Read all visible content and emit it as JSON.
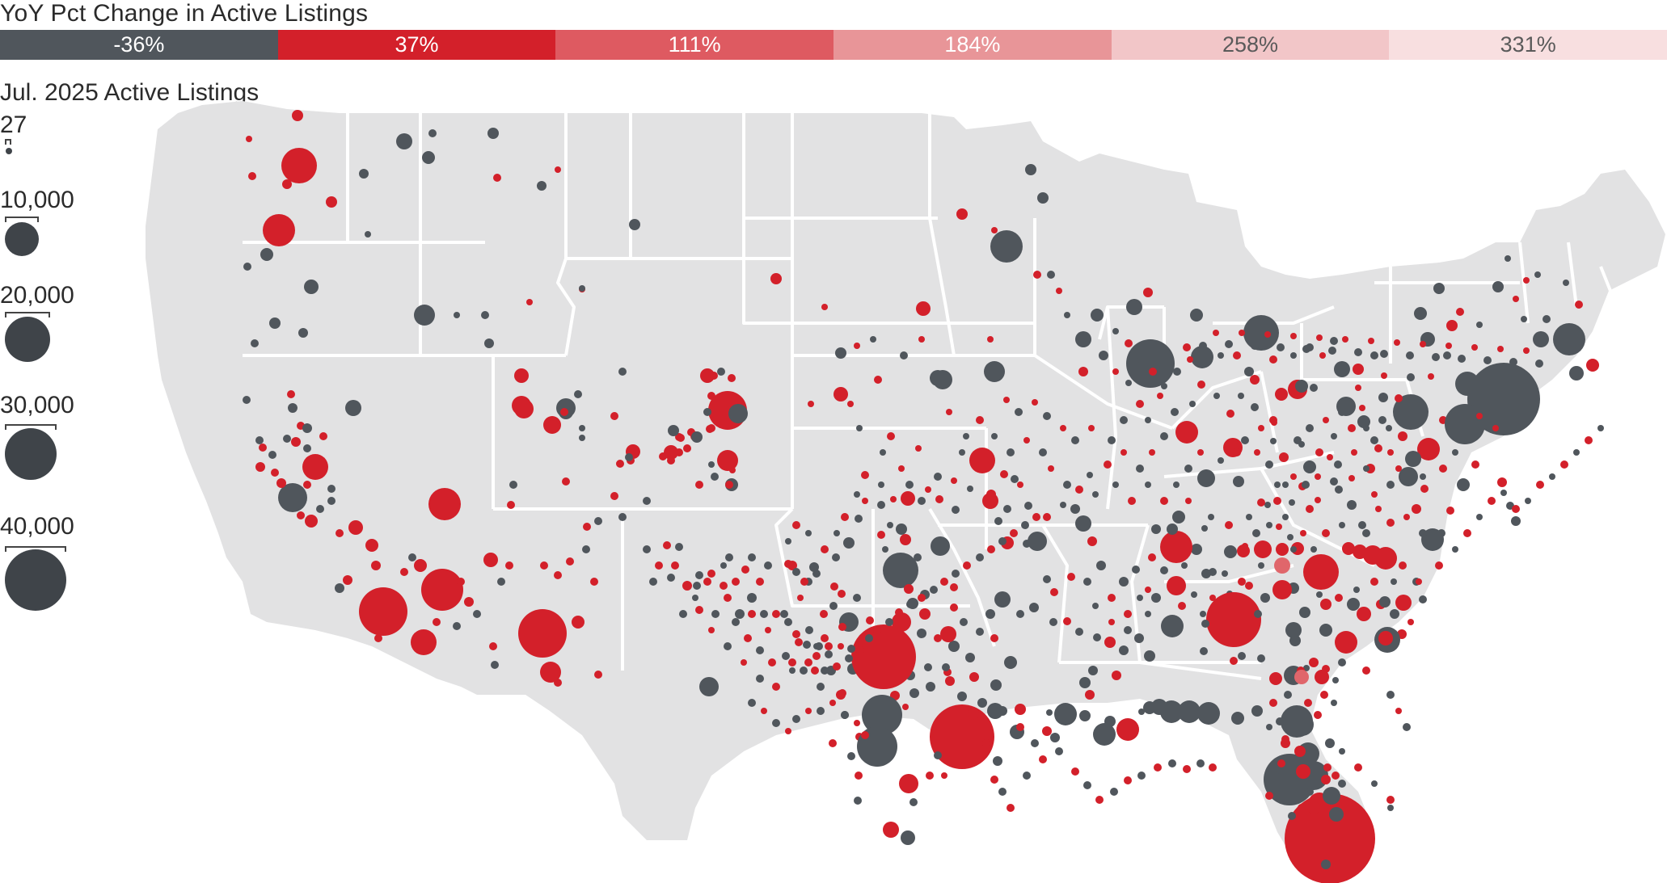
{
  "legend": {
    "color_title": "YoY Pct Change in Active Listings",
    "color_bins": [
      {
        "label": "-36%",
        "color": "#50565c"
      },
      {
        "label": "37%",
        "color": "#d3202a"
      },
      {
        "label": "111%",
        "color": "#de5a61"
      },
      {
        "label": "184%",
        "color": "#e89598"
      },
      {
        "label": "258%",
        "color": "#f2c6c8"
      },
      {
        "label": "331%",
        "color": "#f8dfe0"
      }
    ],
    "size_title": "Jul. 2025 Active Listings",
    "sizes": [
      {
        "label": "27",
        "value": 27
      },
      {
        "label": "10,000",
        "value": 10000
      },
      {
        "label": "20,000",
        "value": 20000
      },
      {
        "label": "30,000",
        "value": 30000
      },
      {
        "label": "40,000",
        "value": 40000
      }
    ]
  },
  "map": {
    "land_color": "#e2e2e3",
    "border_color": "#ffffff",
    "marker_colors": {
      "dark": "#50565c",
      "red": "#d3202a",
      "pink": "#e0666b"
    }
  }
}
